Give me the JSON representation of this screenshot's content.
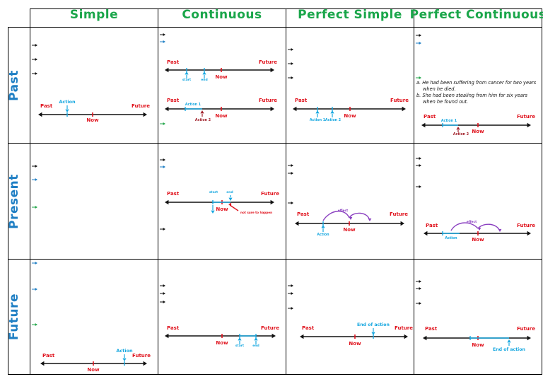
{
  "headers": [
    "Simple",
    "Continuous",
    "Perfect Simple",
    "Perfect Continuous"
  ],
  "rows": [
    "Past",
    "Present",
    "Future"
  ],
  "timeline_labels": {
    "past": "Past",
    "future": "Future",
    "now": "Now",
    "action": "Action",
    "action1": "Action 1",
    "action2": "Action 2",
    "start": "start",
    "end": "end",
    "effect": "effect",
    "not_sure": "not sure to happen",
    "end_of_action": "End of action"
  },
  "examples": [
    "a.  He had been suffering from cancer for two years when he died.",
    "b.  She had been stealing from him for six years when he found out."
  ],
  "colors": {
    "header": "#1aa64a",
    "row_label": "#1f7fc4",
    "past_future": "#e0141e",
    "now": "#e0141e",
    "action": "#18a8e0",
    "action2": "#a0202a",
    "effect": "#8a3fc0",
    "arrow_black": "#111111",
    "arrow_blue": "#1f7fc4",
    "arrow_green": "#22a64a"
  }
}
